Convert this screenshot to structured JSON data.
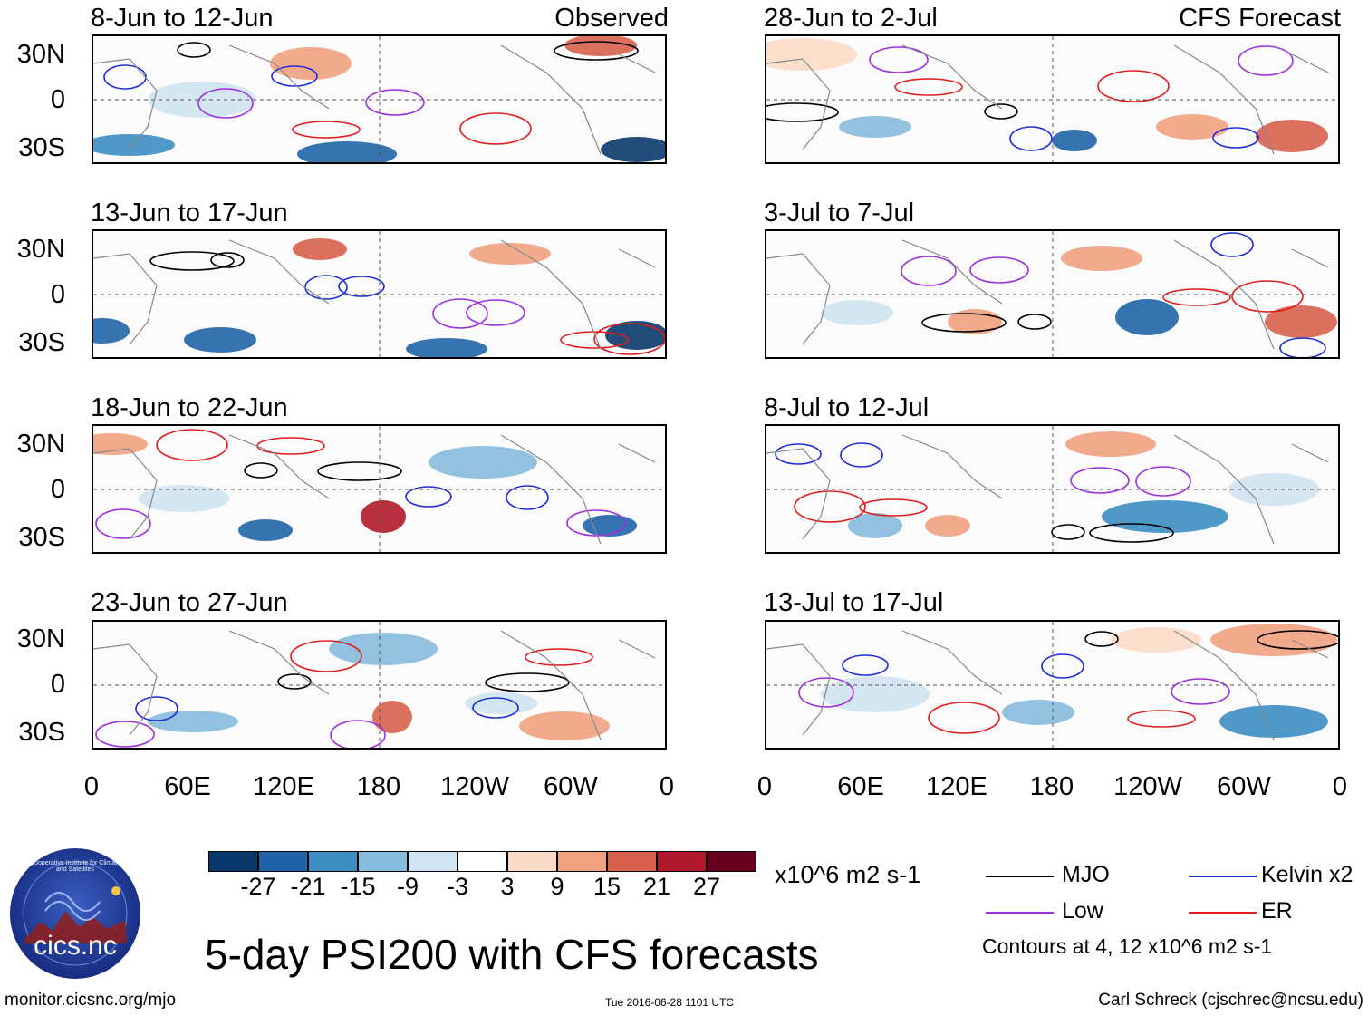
{
  "title": "5-day PSI200 with CFS forecasts",
  "observed_label": "Observed",
  "forecast_label": "CFS Forecast",
  "panels_left": [
    {
      "date": "8-Jun to 12-Jun"
    },
    {
      "date": "13-Jun to 17-Jun"
    },
    {
      "date": "18-Jun to 22-Jun"
    },
    {
      "date": "23-Jun to 27-Jun"
    }
  ],
  "panels_right": [
    {
      "date": "28-Jun to 2-Jul"
    },
    {
      "date": "3-Jul to 7-Jul"
    },
    {
      "date": "8-Jul to 12-Jul"
    },
    {
      "date": "13-Jul to 17-Jul"
    }
  ],
  "lat_labels": [
    "30N",
    "0",
    "30S"
  ],
  "lon_labels": [
    "0",
    "60E",
    "120E",
    "180",
    "120W",
    "60W",
    "0"
  ],
  "colorbar": {
    "colors": [
      "#0a3a6b",
      "#1f64a8",
      "#3c8ec3",
      "#86bbdb",
      "#cfe3f0",
      "#ffffff",
      "#fbdac7",
      "#f0a27f",
      "#d7604e",
      "#b2182b",
      "#67001f"
    ],
    "labels": [
      "-27",
      "-21",
      "-15",
      "-9",
      "-3",
      "3",
      "9",
      "15",
      "21",
      "27"
    ],
    "units": "x10^6 m2 s-1"
  },
  "legend": {
    "items": [
      {
        "label": "MJO",
        "color": "#000000"
      },
      {
        "label": "Kelvin x2",
        "color": "#1f2fd6"
      },
      {
        "label": "Low",
        "color": "#9b30e0"
      },
      {
        "label": "ER",
        "color": "#e01c1c"
      }
    ],
    "contours_note": "Contours at 4, 12 x10^6 m2 s-1"
  },
  "logo_text": "cics.nc",
  "logo_ring_text": "Cooperative Institute for Climate and Satellites",
  "footer": {
    "url": "monitor.cicsnc.org/mjo",
    "timestamp": "Tue 2016-06-28 1101 UTC",
    "author": "Carl Schreck (cjschrec@ncsu.edu)"
  }
}
